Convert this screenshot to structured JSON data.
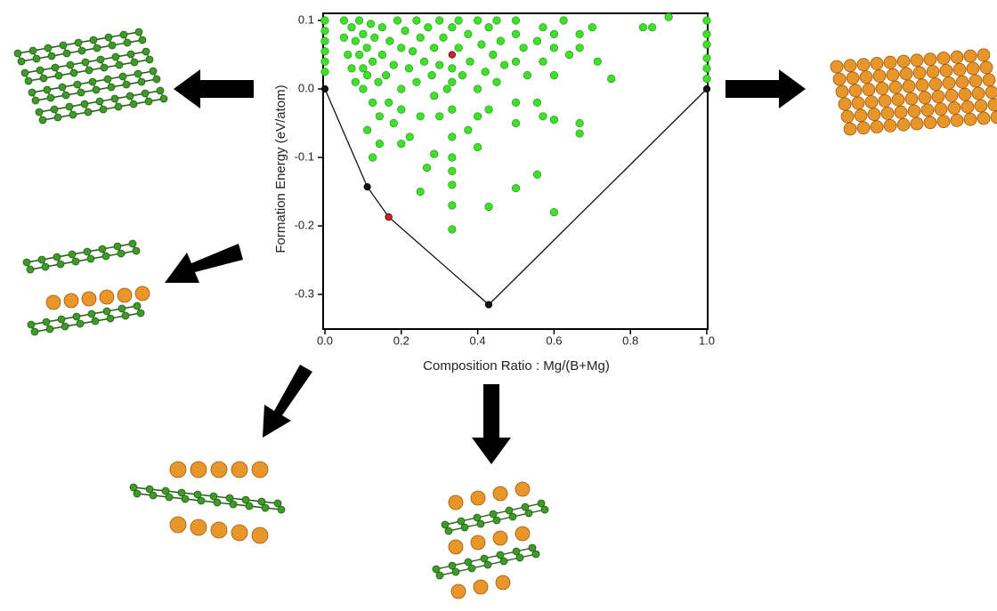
{
  "chart_data": {
    "type": "scatter",
    "xlabel": "Composition Ratio : Mg/(B+Mg)",
    "ylabel": "Formation Energy (eV/atom)",
    "xlim": [
      0,
      1
    ],
    "ylim": [
      -0.35,
      0.11
    ],
    "xticks": [
      {
        "value": 0,
        "label": "0.0"
      },
      0.2,
      0.4,
      0.6,
      0.8,
      {
        "value": 1,
        "label": "1.0"
      }
    ],
    "yticks": [
      0.1,
      {
        "value": 0,
        "label": "0.0"
      },
      -0.1,
      -0.2,
      -0.3
    ],
    "series": [
      {
        "color": "#3ee02a",
        "x": [
          0,
          0,
          0,
          0,
          0,
          0,
          0.05,
          0.05,
          0.06,
          0.07,
          0.07,
          0.08,
          0.08,
          0.09,
          0.09,
          0.1,
          0.1,
          0.1,
          0.11,
          0.111,
          0.111,
          0.12,
          0.125,
          0.125,
          0.125,
          0.13,
          0.14,
          0.143,
          0.143,
          0.15,
          0.15,
          0.16,
          0.167,
          0.17,
          0.18,
          0.18,
          0.19,
          0.2,
          0.2,
          0.2,
          0.2,
          0.21,
          0.22,
          0.222,
          0.23,
          0.24,
          0.24,
          0.25,
          0.25,
          0.25,
          0.26,
          0.267,
          0.27,
          0.28,
          0.286,
          0.286,
          0.286,
          0.3,
          0.3,
          0.3,
          0.31,
          0.32,
          0.333,
          0.333,
          0.333,
          0.333,
          0.333,
          0.333,
          0.333,
          0.333,
          0.333,
          0.333,
          0.35,
          0.35,
          0.36,
          0.375,
          0.375,
          0.38,
          0.4,
          0.4,
          0.4,
          0.4,
          0.41,
          0.42,
          0.429,
          0.429,
          0.429,
          0.44,
          0.45,
          0.45,
          0.46,
          0.47,
          0.5,
          0.5,
          0.5,
          0.5,
          0.5,
          0.5,
          0.52,
          0.53,
          0.556,
          0.556,
          0.556,
          0.571,
          0.571,
          0.571,
          0.6,
          0.6,
          0.6,
          0.6,
          0.6,
          0.625,
          0.64,
          0.667,
          0.667,
          0.667,
          0.667,
          0.7,
          0.714,
          0.75,
          0.833,
          0.857,
          0.9,
          1,
          1,
          1,
          1,
          1,
          1
        ],
        "values": [
          0.1,
          0.085,
          0.07,
          0.055,
          0.04,
          0.025,
          0.1,
          0.075,
          0.05,
          0.09,
          0.03,
          0.07,
          0.01,
          0.1,
          0.05,
          0.08,
          0.03,
          0.0,
          0.06,
          0.02,
          -0.06,
          0.095,
          0.04,
          -0.02,
          -0.1,
          0.075,
          0.01,
          -0.04,
          -0.08,
          0.09,
          0.05,
          0.02,
          -0.02,
          0.07,
          0.035,
          -0.05,
          0.1,
          0.06,
          0.0,
          -0.03,
          -0.08,
          0.085,
          0.03,
          -0.07,
          0.055,
          0.1,
          0.01,
          0.075,
          -0.04,
          -0.15,
          0.04,
          -0.115,
          0.09,
          0.02,
          0.06,
          -0.01,
          -0.095,
          0.1,
          0.035,
          -0.04,
          0.075,
          0.0,
          0.09,
          0.03,
          0.01,
          -0.03,
          -0.07,
          -0.1,
          -0.12,
          -0.14,
          -0.17,
          -0.205,
          0.1,
          0.06,
          0.02,
          0.08,
          -0.06,
          0.04,
          0.1,
          0.0,
          -0.04,
          -0.085,
          0.065,
          0.025,
          0.09,
          -0.03,
          -0.172,
          0.05,
          0.1,
          0.01,
          0.07,
          0.035,
          0.1,
          0.08,
          0.04,
          -0.02,
          -0.05,
          -0.145,
          0.06,
          0.02,
          0.07,
          -0.02,
          -0.125,
          0.09,
          0.04,
          -0.04,
          0.08,
          0.06,
          0.02,
          -0.045,
          -0.18,
          0.1,
          0.05,
          0.08,
          0.06,
          -0.05,
          -0.065,
          0.09,
          0.04,
          0.015,
          0.09,
          0.09,
          0.105,
          0.1,
          0.08,
          0.065,
          0.045,
          0.03,
          0.015
        ]
      },
      {
        "color": "#111111",
        "line": true,
        "x": [
          0,
          0.111,
          0.167,
          0.429,
          1
        ],
        "values": [
          0,
          -0.143,
          -0.187,
          -0.315,
          0
        ]
      },
      {
        "color": "#d42020",
        "x": [
          0.167,
          0.333
        ],
        "values": [
          -0.187,
          0.05
        ]
      }
    ]
  }
}
